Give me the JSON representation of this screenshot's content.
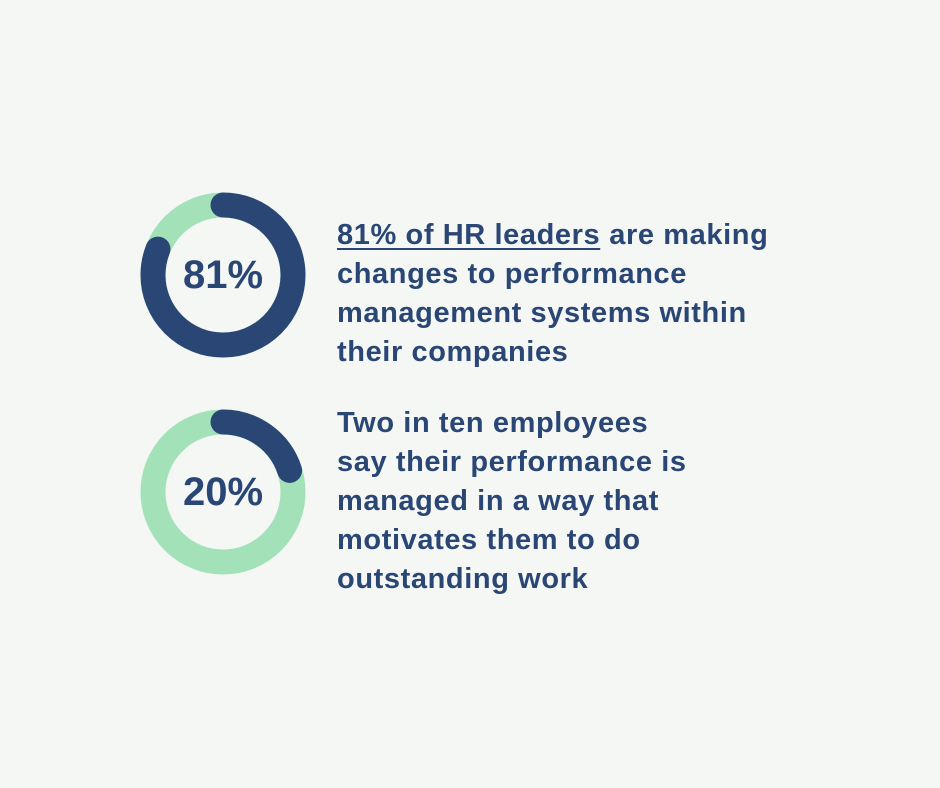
{
  "chart_data": [
    {
      "type": "donut",
      "values": [
        81
      ],
      "value_labels": [
        "81%"
      ],
      "ylim": [
        0,
        100
      ],
      "color": "#2a4675",
      "track_color": "#a3e2b9",
      "annotation": {
        "link": "81% of HR leaders",
        "lines": [
          "are making",
          "changes to performance",
          "management systems within",
          "their companies"
        ]
      }
    },
    {
      "type": "donut",
      "values": [
        20
      ],
      "value_labels": [
        "20%"
      ],
      "ylim": [
        0,
        100
      ],
      "color": "#2a4675",
      "track_color": "#a3e2b9",
      "annotation": {
        "lines": [
          "Two in ten employees",
          "say their performance is",
          "managed in a way that",
          "motivates them to do",
          "outstanding work"
        ]
      }
    }
  ]
}
